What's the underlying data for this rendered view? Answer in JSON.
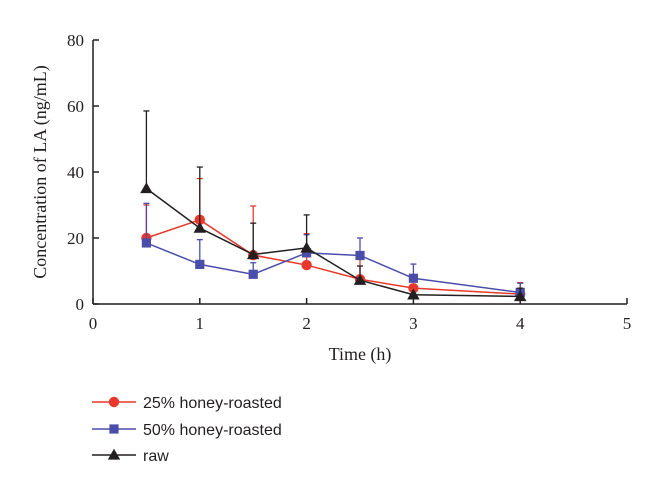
{
  "chart_data": {
    "type": "line",
    "title": "",
    "xlabel": "Time (h)",
    "ylabel": "Concentration of LA (ng/mL)",
    "xlim": [
      0,
      5
    ],
    "ylim": [
      0,
      80
    ],
    "xticks": [
      "0",
      "1",
      "2",
      "3",
      "4",
      "5"
    ],
    "yticks": [
      "0",
      "20",
      "40",
      "60",
      "80"
    ],
    "grid": false,
    "legend_position": "bottom-left",
    "x": [
      0.5,
      1,
      1.5,
      2,
      2.5,
      3,
      4
    ],
    "series": [
      {
        "name": "25% honey-roasted",
        "color": "#e8382b",
        "marker": "circle",
        "values": [
          20,
          25.5,
          14.8,
          11.8,
          7.5,
          4.8,
          3.0
        ],
        "errors": [
          10,
          12.5,
          14.9,
          9.5,
          6.0,
          0,
          3.5
        ]
      },
      {
        "name": "50% honey-roasted",
        "color": "#4a4eaa",
        "marker": "square",
        "values": [
          18.5,
          12.0,
          9.0,
          15.5,
          14.7,
          7.8,
          3.5
        ],
        "errors": [
          12,
          7.5,
          3.5,
          5.5,
          5.3,
          4.3,
          2.8
        ]
      },
      {
        "name": "raw",
        "color": "#231f20",
        "marker": "triangle",
        "values": [
          35.0,
          23.0,
          15.0,
          17.0,
          7.2,
          2.8,
          2.3
        ],
        "errors": [
          23.5,
          18.5,
          9.5,
          10.0,
          4.3,
          0,
          2.5
        ]
      }
    ]
  }
}
